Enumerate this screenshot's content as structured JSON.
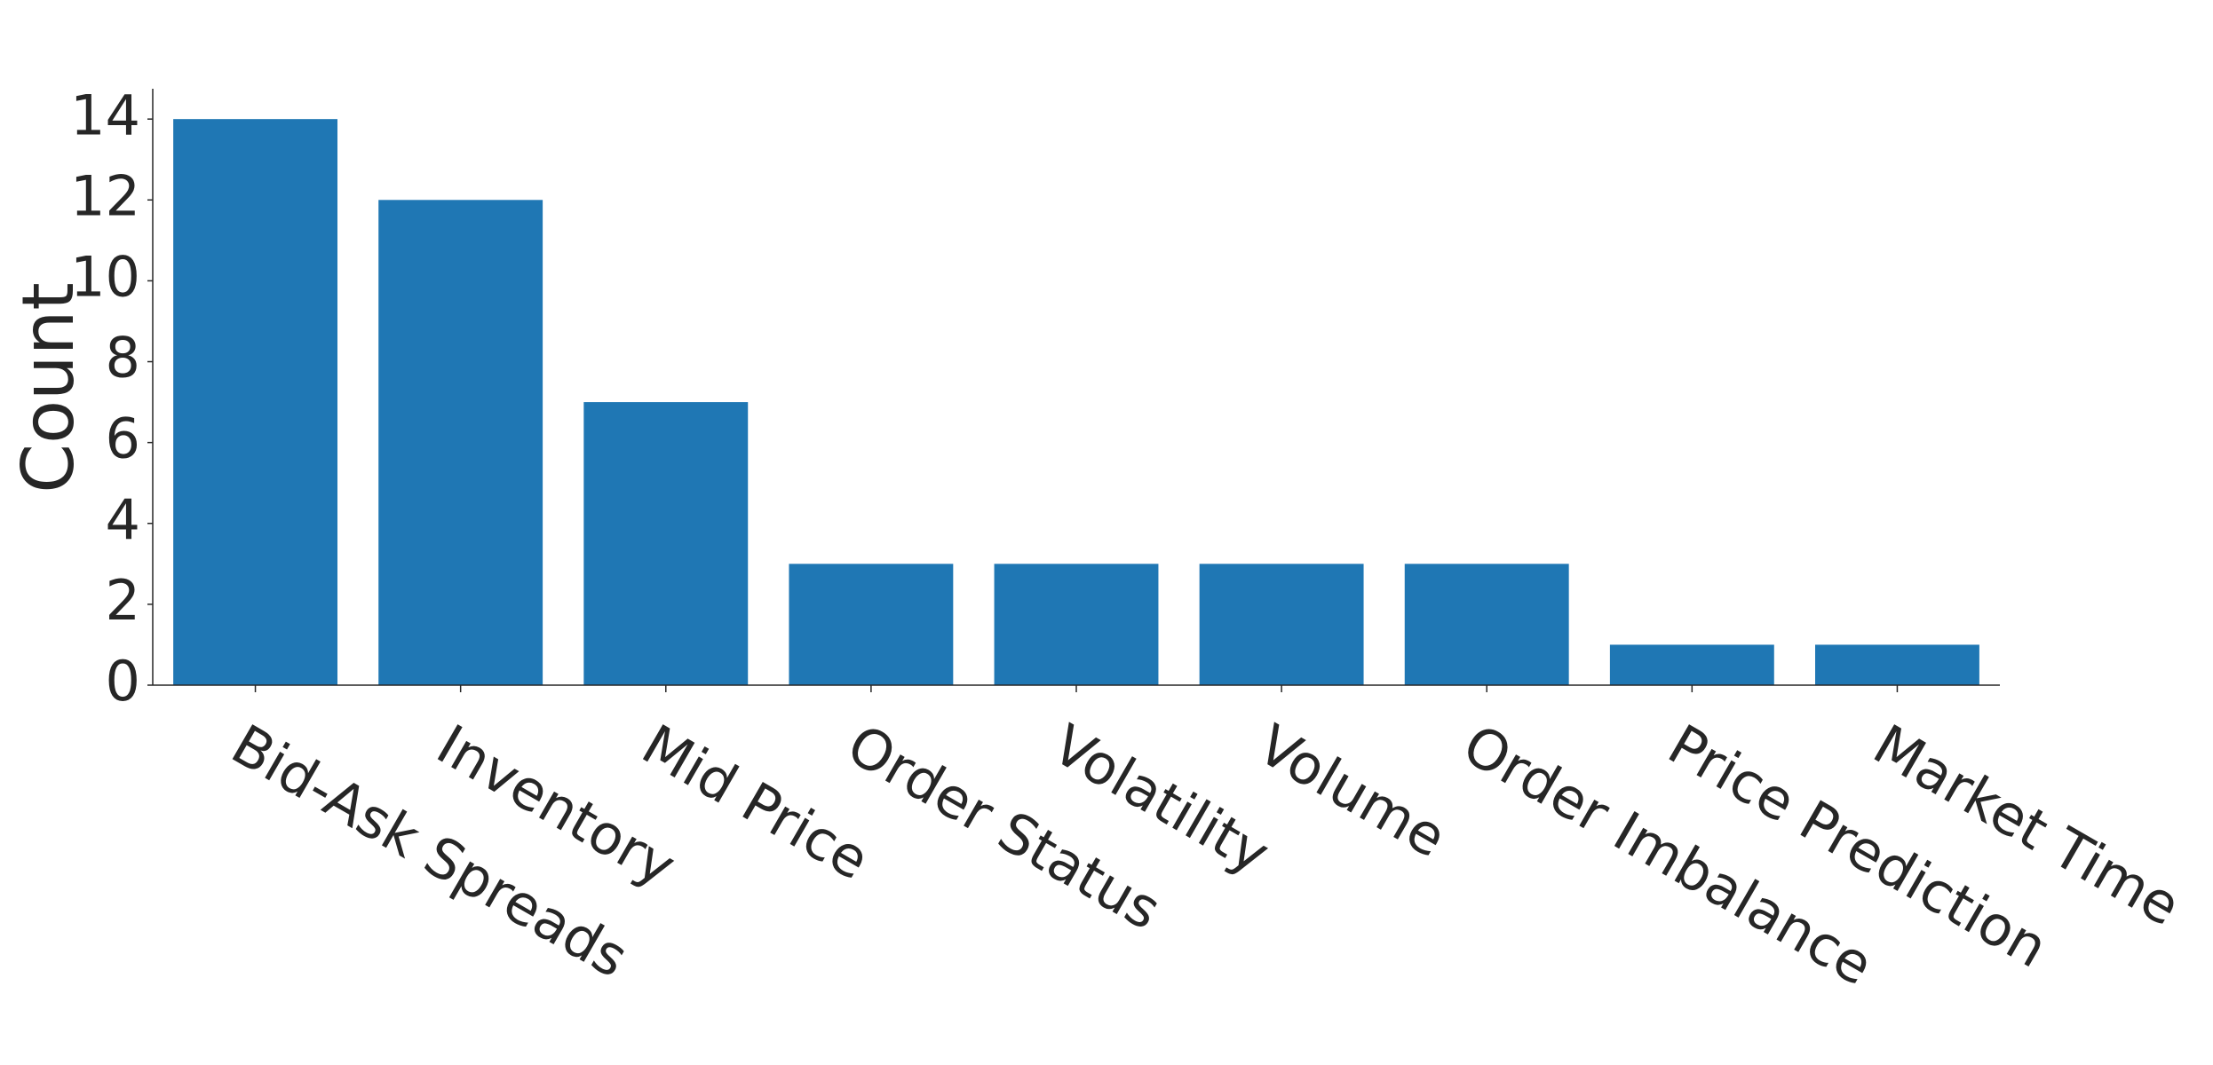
{
  "chart_data": {
    "type": "bar",
    "y_label": "Count",
    "categories": [
      "Bid-Ask Spreads",
      "Inventory",
      "Mid Price",
      "Order Status",
      "Volatility",
      "Volume",
      "Order Imbalance",
      "Price Prediction",
      "Market Time"
    ],
    "values": [
      14,
      12,
      7,
      3,
      3,
      3,
      3,
      1,
      1
    ],
    "color": "#1f77b4",
    "ylim": [
      0,
      14.75
    ],
    "yticks": [
      0,
      2,
      4,
      6,
      8,
      10,
      12,
      14
    ],
    "grid": false
  }
}
